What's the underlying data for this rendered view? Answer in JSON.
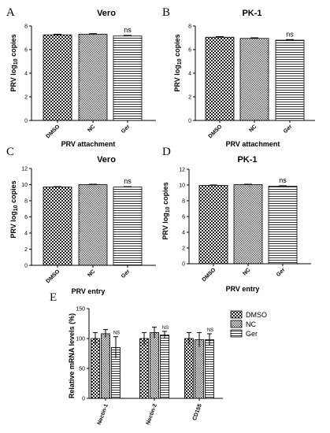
{
  "chart_data": [
    {
      "panel": "A",
      "type": "bar",
      "title": "Vero",
      "xlabel": "PRV attachment",
      "ylabel": "PRV log10 copies",
      "ylim": [
        0,
        8
      ],
      "yticks": [
        0,
        2,
        4,
        6,
        8
      ],
      "categories": [
        "DMSO",
        "NC",
        "Ger"
      ],
      "values": [
        7.25,
        7.3,
        7.15
      ],
      "errors": [
        0.05,
        0.05,
        0.05
      ],
      "patterns": [
        "checker",
        "checker-fine",
        "hlines"
      ],
      "annotations": [
        {
          "category": "Ger",
          "text": "ns"
        }
      ]
    },
    {
      "panel": "B",
      "type": "bar",
      "title": "PK-1",
      "xlabel": "PRV attachment",
      "ylabel": "PRV log10 copies",
      "ylim": [
        0,
        8
      ],
      "yticks": [
        0,
        2,
        4,
        6,
        8
      ],
      "categories": [
        "DMSO",
        "NC",
        "Ger"
      ],
      "values": [
        7.05,
        6.95,
        6.8
      ],
      "errors": [
        0.05,
        0.05,
        0.05
      ],
      "patterns": [
        "checker",
        "checker-fine",
        "hlines"
      ],
      "annotations": [
        {
          "category": "Ger",
          "text": "ns"
        }
      ]
    },
    {
      "panel": "C",
      "type": "bar",
      "title": "Vero",
      "xlabel": "PRV entry",
      "ylabel": "PRV log10 copies",
      "ylim": [
        0,
        12
      ],
      "yticks": [
        0,
        2,
        4,
        6,
        8,
        10,
        12
      ],
      "categories": [
        "DMSO",
        "NC",
        "Ger"
      ],
      "values": [
        9.7,
        10.0,
        9.7
      ],
      "errors": [
        0.05,
        0.05,
        0.05
      ],
      "patterns": [
        "checker",
        "checker-fine",
        "hlines"
      ],
      "annotations": [
        {
          "category": "Ger",
          "text": "ns"
        }
      ]
    },
    {
      "panel": "D",
      "type": "bar",
      "title": "PK-1",
      "xlabel": "PRV entry",
      "ylabel": "PRV log10 copies",
      "ylim": [
        0,
        12
      ],
      "yticks": [
        0,
        2,
        4,
        6,
        8,
        10,
        12
      ],
      "categories": [
        "DMSO",
        "NC",
        "Ger"
      ],
      "values": [
        9.95,
        10.05,
        9.85
      ],
      "errors": [
        0.05,
        0.05,
        0.05
      ],
      "patterns": [
        "checker",
        "checker-fine",
        "hlines"
      ],
      "annotations": [
        {
          "category": "Ger",
          "text": "ns"
        }
      ]
    },
    {
      "panel": "E",
      "type": "bar",
      "ylabel": "Relative mRNA levels (%)",
      "ylim": [
        0,
        150
      ],
      "yticks": [
        0,
        50,
        100,
        150
      ],
      "categories": [
        "Nectin-1",
        "Nectin-2",
        "CD155"
      ],
      "series": [
        {
          "name": "DMSO",
          "pattern": "checker",
          "values": [
            100,
            100,
            100
          ],
          "errors": [
            10,
            10,
            10
          ]
        },
        {
          "name": "NC",
          "pattern": "checker-fine",
          "values": [
            108,
            110,
            98
          ],
          "errors": [
            7,
            9,
            12
          ]
        },
        {
          "name": "Ger",
          "pattern": "hlines",
          "values": [
            85,
            106,
            98
          ],
          "errors": [
            18,
            6,
            10
          ]
        }
      ],
      "annotations": [
        "NS",
        "NS",
        "NS"
      ],
      "legend": "right"
    }
  ]
}
